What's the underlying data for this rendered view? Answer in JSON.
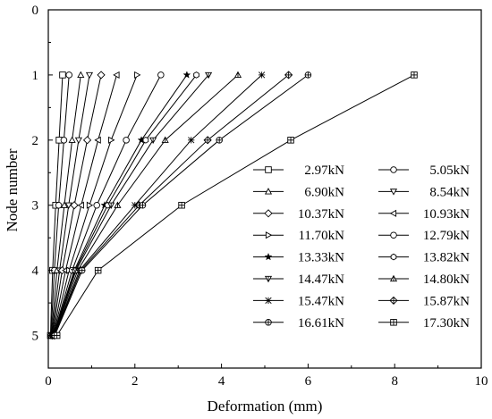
{
  "chart_data": {
    "type": "line",
    "xlabel": "Deformation (mm)",
    "ylabel": "Node number",
    "xlim": [
      0,
      10
    ],
    "ylim": [
      0,
      5.5
    ],
    "y_inverted": true,
    "x_ticks": [
      "0",
      "2",
      "4",
      "6",
      "8",
      "10"
    ],
    "y_ticks": [
      "0",
      "1",
      "2",
      "3",
      "4",
      "5"
    ],
    "grid": false,
    "legend_position": "right",
    "series": [
      {
        "name": "2.97kN",
        "marker": "square",
        "points": [
          [
            0.33,
            1
          ],
          [
            0.25,
            2
          ],
          [
            0.17,
            3
          ],
          [
            0.1,
            4
          ],
          [
            0.05,
            5
          ]
        ]
      },
      {
        "name": "5.05kN",
        "marker": "circle",
        "points": [
          [
            0.48,
            1
          ],
          [
            0.36,
            2
          ],
          [
            0.24,
            3
          ],
          [
            0.14,
            4
          ],
          [
            0.06,
            5
          ]
        ]
      },
      {
        "name": "6.90kN",
        "marker": "triangle-up",
        "points": [
          [
            0.75,
            1
          ],
          [
            0.55,
            2
          ],
          [
            0.37,
            3
          ],
          [
            0.2,
            4
          ],
          [
            0.07,
            5
          ]
        ]
      },
      {
        "name": "8.54kN",
        "marker": "triangle-down",
        "points": [
          [
            0.95,
            1
          ],
          [
            0.7,
            2
          ],
          [
            0.47,
            3
          ],
          [
            0.26,
            4
          ],
          [
            0.08,
            5
          ]
        ]
      },
      {
        "name": "10.37kN",
        "marker": "diamond",
        "points": [
          [
            1.22,
            1
          ],
          [
            0.9,
            2
          ],
          [
            0.6,
            3
          ],
          [
            0.32,
            4
          ],
          [
            0.09,
            5
          ]
        ]
      },
      {
        "name": "10.93kN",
        "marker": "triangle-left",
        "points": [
          [
            1.58,
            1
          ],
          [
            1.15,
            2
          ],
          [
            0.76,
            3
          ],
          [
            0.4,
            4
          ],
          [
            0.1,
            5
          ]
        ]
      },
      {
        "name": "11.70kN",
        "marker": "triangle-right",
        "points": [
          [
            2.05,
            1
          ],
          [
            1.45,
            2
          ],
          [
            0.95,
            3
          ],
          [
            0.48,
            4
          ],
          [
            0.11,
            5
          ]
        ]
      },
      {
        "name": "12.79kN",
        "marker": "circle",
        "points": [
          [
            2.6,
            1
          ],
          [
            1.8,
            2
          ],
          [
            1.12,
            3
          ],
          [
            0.55,
            4
          ],
          [
            0.12,
            5
          ]
        ]
      },
      {
        "name": "13.33kN",
        "marker": "star",
        "points": [
          [
            3.2,
            1
          ],
          [
            2.15,
            2
          ],
          [
            1.3,
            3
          ],
          [
            0.6,
            4
          ],
          [
            0.12,
            5
          ]
        ]
      },
      {
        "name": "13.82kN",
        "marker": "hexagon",
        "points": [
          [
            3.42,
            1
          ],
          [
            2.25,
            2
          ],
          [
            1.37,
            3
          ],
          [
            0.62,
            4
          ],
          [
            0.13,
            5
          ]
        ]
      },
      {
        "name": "14.47kN",
        "marker": "triangle-down-x",
        "points": [
          [
            3.7,
            1
          ],
          [
            2.42,
            2
          ],
          [
            1.45,
            3
          ],
          [
            0.64,
            4
          ],
          [
            0.13,
            5
          ]
        ]
      },
      {
        "name": "14.80kN",
        "marker": "triangle-up-x",
        "points": [
          [
            4.38,
            1
          ],
          [
            2.7,
            2
          ],
          [
            1.6,
            3
          ],
          [
            0.68,
            4
          ],
          [
            0.13,
            5
          ]
        ]
      },
      {
        "name": "15.47kN",
        "marker": "asterisk",
        "points": [
          [
            4.93,
            1
          ],
          [
            3.3,
            2
          ],
          [
            2.0,
            3
          ],
          [
            0.72,
            4
          ],
          [
            0.14,
            5
          ]
        ]
      },
      {
        "name": "15.87kN",
        "marker": "diamond-x",
        "points": [
          [
            5.55,
            1
          ],
          [
            3.68,
            2
          ],
          [
            2.1,
            3
          ],
          [
            0.75,
            4
          ],
          [
            0.14,
            5
          ]
        ]
      },
      {
        "name": "16.61kN",
        "marker": "circle-x",
        "points": [
          [
            6.0,
            1
          ],
          [
            3.95,
            2
          ],
          [
            2.18,
            3
          ],
          [
            0.78,
            4
          ],
          [
            0.15,
            5
          ]
        ]
      },
      {
        "name": "17.30kN",
        "marker": "square-x",
        "points": [
          [
            8.45,
            1
          ],
          [
            5.6,
            2
          ],
          [
            3.08,
            3
          ],
          [
            1.15,
            4
          ],
          [
            0.2,
            5
          ]
        ]
      }
    ]
  }
}
